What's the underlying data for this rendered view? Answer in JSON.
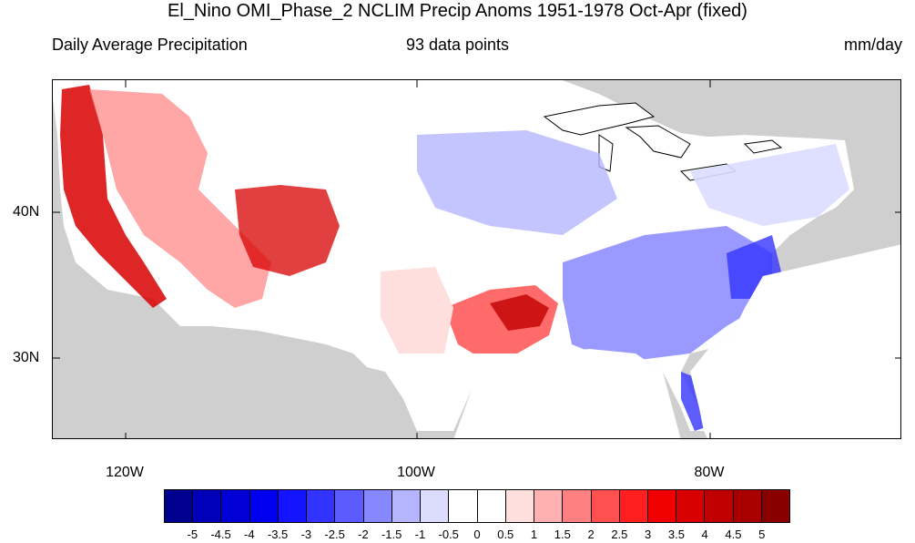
{
  "header": {
    "title": "El_Nino OMI_Phase_2 NCLIM Precip Anoms 1951-1978 Oct-Apr (fixed)",
    "left_label": "Daily Average Precipitation",
    "center_label": "93 data points",
    "right_label": "mm/day"
  },
  "map": {
    "lat_labels": [
      "40N",
      "30N"
    ],
    "lon_labels": [
      "120W",
      "100W",
      "80W"
    ]
  },
  "colorbar": {
    "colors": [
      "#00008f",
      "#0000b8",
      "#0000d6",
      "#0000f0",
      "#1414ff",
      "#3333ff",
      "#5b5bff",
      "#8787ff",
      "#b5b5ff",
      "#dcdcff",
      "#ffffff",
      "#ffffff",
      "#ffdede",
      "#ffb0b0",
      "#ff8080",
      "#ff5050",
      "#ff1f1f",
      "#f00000",
      "#d80000",
      "#c00000",
      "#a80000",
      "#8a0000"
    ],
    "ticks": [
      "-5",
      "-4.5",
      "-4",
      "-3.5",
      "-3",
      "-2.5",
      "-2",
      "-1.5",
      "-1",
      "-0.5",
      "0",
      "0.5",
      "1",
      "1.5",
      "2",
      "2.5",
      "3",
      "3.5",
      "4",
      "4.5",
      "5"
    ]
  }
}
